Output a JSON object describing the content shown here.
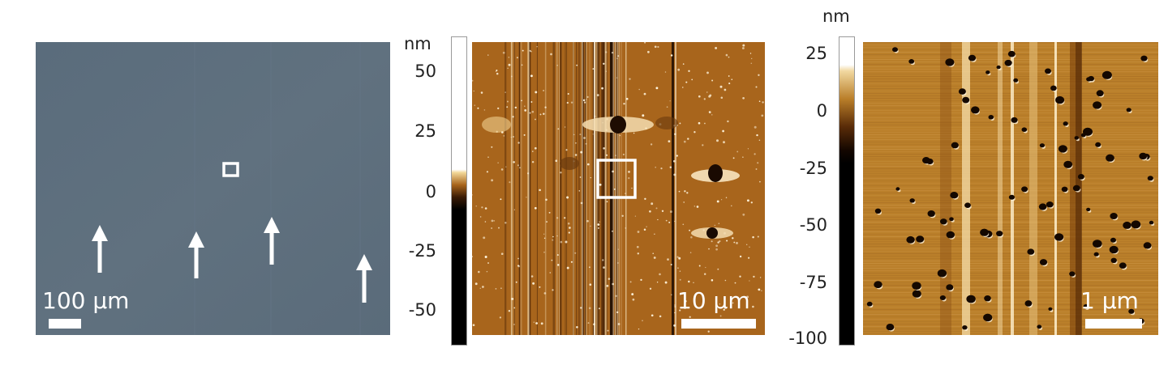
{
  "optical_panel": {
    "scale_label": "100 μm",
    "background_color": "#5b6d7d",
    "arrow_count": 4
  },
  "afm_panel_1": {
    "scale_label": "10 μm",
    "colorbar": {
      "unit": "nm",
      "ticks": [
        "50",
        "25",
        "0",
        "-25",
        "-50"
      ],
      "top_color": "#ffffff",
      "mid_color": "#a8651c",
      "bottom_color": "#000000"
    }
  },
  "afm_panel_2": {
    "scale_label": "1 μm",
    "colorbar": {
      "unit": "nm",
      "ticks": [
        "25",
        "0",
        "-25",
        "-50",
        "-75",
        "-100"
      ],
      "top_color": "#ffffff",
      "mid_color": "#ba7f2a",
      "bottom_color": "#000000"
    }
  }
}
